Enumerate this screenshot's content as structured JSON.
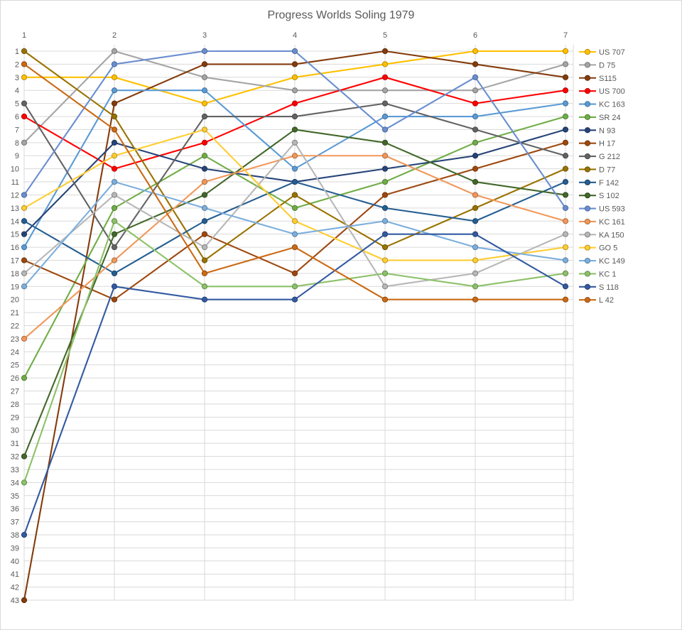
{
  "chart_data": {
    "type": "line",
    "title": "Progress Worlds Soling 1979",
    "xlabel": "",
    "ylabel": "",
    "x": [
      1,
      2,
      3,
      4,
      5,
      6,
      7
    ],
    "x_ticks": [
      "1",
      "2",
      "3",
      "4",
      "5",
      "6",
      "7"
    ],
    "y_axis": {
      "min": 1,
      "max": 43,
      "step": 1,
      "inverted": true
    },
    "grid": true,
    "legend_position": "right",
    "marker": "circle",
    "axis_text_color": "#595959",
    "grid_color": "#d9d9d9",
    "series": [
      {
        "name": "US 707",
        "color": "#FFC000",
        "values": [
          3,
          3,
          5,
          3,
          2,
          1,
          1
        ]
      },
      {
        "name": "D 75",
        "color": "#A5A5A5",
        "values": [
          8,
          1,
          3,
          4,
          4,
          4,
          2
        ]
      },
      {
        "name": "S115",
        "color": "#843C0C",
        "values": [
          43,
          5,
          2,
          2,
          1,
          2,
          3
        ]
      },
      {
        "name": "US 700",
        "color": "#FF0000",
        "values": [
          6,
          10,
          8,
          5,
          3,
          5,
          4
        ]
      },
      {
        "name": "KC 163",
        "color": "#5B9BD5",
        "values": [
          16,
          4,
          4,
          10,
          6,
          6,
          5
        ]
      },
      {
        "name": "SR 24",
        "color": "#70AD47",
        "values": [
          26,
          13,
          9,
          13,
          11,
          8,
          6
        ]
      },
      {
        "name": "N 93",
        "color": "#264478",
        "values": [
          15,
          8,
          10,
          11,
          10,
          9,
          7
        ]
      },
      {
        "name": "H 17",
        "color": "#9E480E",
        "values": [
          17,
          20,
          15,
          18,
          12,
          10,
          8
        ]
      },
      {
        "name": "G 212",
        "color": "#636363",
        "values": [
          5,
          16,
          6,
          6,
          5,
          7,
          9
        ]
      },
      {
        "name": "D 77",
        "color": "#997300",
        "values": [
          1,
          6,
          17,
          12,
          16,
          13,
          10
        ]
      },
      {
        "name": "F 142",
        "color": "#255E91",
        "values": [
          14,
          18,
          14,
          11,
          13,
          14,
          11
        ]
      },
      {
        "name": "S 102",
        "color": "#43682B",
        "values": [
          32,
          15,
          12,
          7,
          8,
          11,
          12
        ]
      },
      {
        "name": "US 593",
        "color": "#698ED0",
        "values": [
          12,
          2,
          1,
          1,
          7,
          3,
          13
        ]
      },
      {
        "name": "KC 161",
        "color": "#F1975A",
        "values": [
          23,
          17,
          11,
          9,
          9,
          12,
          14
        ]
      },
      {
        "name": "KA 150",
        "color": "#B7B7B7",
        "values": [
          18,
          12,
          16,
          8,
          19,
          18,
          15
        ]
      },
      {
        "name": "GO 5",
        "color": "#FFCD33",
        "values": [
          13,
          9,
          7,
          14,
          17,
          17,
          16
        ]
      },
      {
        "name": "KC 149",
        "color": "#7CAFDD",
        "values": [
          19,
          11,
          13,
          15,
          14,
          16,
          17
        ]
      },
      {
        "name": "KC 1",
        "color": "#8CC168",
        "values": [
          34,
          14,
          19,
          19,
          18,
          19,
          18
        ]
      },
      {
        "name": "S 118",
        "color": "#335AA1",
        "values": [
          38,
          19,
          20,
          20,
          15,
          15,
          19
        ]
      },
      {
        "name": "L 42",
        "color": "#CB6A15",
        "values": [
          2,
          7,
          18,
          16,
          20,
          20,
          20
        ]
      }
    ]
  }
}
